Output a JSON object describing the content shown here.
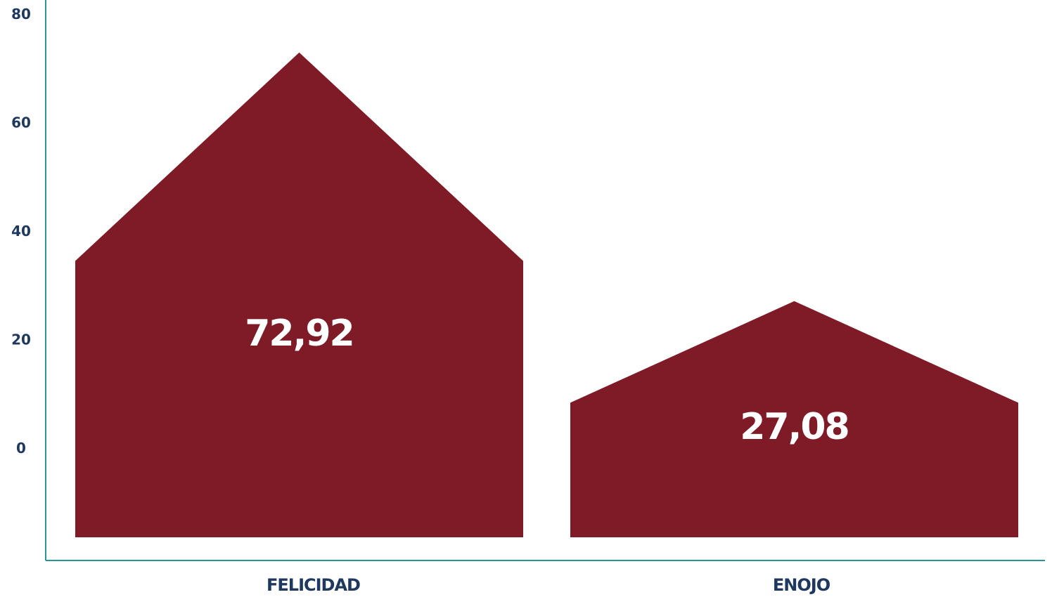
{
  "chart_data": {
    "type": "bar",
    "categories": [
      "FELICIDAD",
      "ENOJO"
    ],
    "values": [
      72.92,
      27.08
    ],
    "data_labels": [
      "72,92",
      "27,08"
    ],
    "y_ticks": [
      0,
      20,
      40,
      60,
      80
    ],
    "y_tick_labels": [
      "0",
      "20",
      "40",
      "60",
      "80"
    ],
    "ylim": [
      0,
      80
    ],
    "grid": false,
    "legend": "none",
    "title": "",
    "xlabel": "",
    "ylabel": ""
  },
  "colors": {
    "bar": "#7f1a27",
    "axis": "#2a9596",
    "tick_text": "#1f3860",
    "category_text": "#1f3860",
    "data_label_text": "#ffffff"
  }
}
